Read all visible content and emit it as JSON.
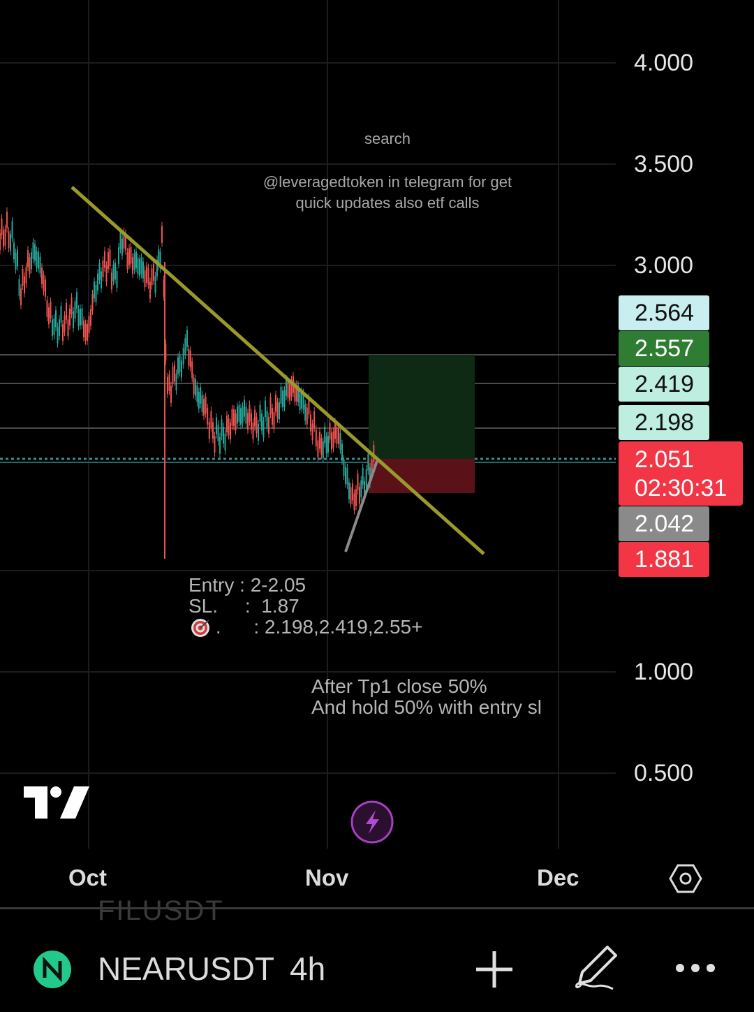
{
  "price_axis": [
    "4.000",
    "3.500",
    "3.000",
    "1.000",
    "0.500"
  ],
  "price_badges": [
    {
      "value": "2.564",
      "bg": "#c8eef0",
      "fg": "#111111"
    },
    {
      "value": "2.557",
      "bg": "#2e7d32",
      "fg": "#ffffff"
    },
    {
      "value": "2.419",
      "bg": "#bdeee0",
      "fg": "#111111"
    },
    {
      "value": "2.198",
      "bg": "#bdeee0",
      "fg": "#111111"
    },
    {
      "value": "2.042",
      "bg": "#8a8a8a",
      "fg": "#ffffff"
    },
    {
      "value": "1.881",
      "bg": "#f23645",
      "fg": "#ffffff"
    }
  ],
  "current_price": {
    "value": "2.051",
    "countdown": "02:30:31",
    "bg": "#f23645"
  },
  "time_axis": [
    "Oct",
    "Nov",
    "Dec"
  ],
  "notes": {
    "search": "search",
    "promo": "@leveragedtoken in telegram for get\nquick updates also etf calls",
    "trade": "Entry : 2-2.05\nSL.     :  1.87\n     .      : 2.198,2.419,2.55+",
    "target_icon": "target-emoji",
    "plan": "After Tp1 close 50%\nAnd hold 50% with entry sl"
  },
  "symbol": {
    "ticker": "NEARUSDT",
    "interval": "4h",
    "ghost": "FILUSDT"
  },
  "toolbar": {
    "add": "plus-icon",
    "draw": "pen-icon",
    "more": "more-icon"
  },
  "colors": {
    "trendline": "#9a9a2a",
    "up": "#26a69a",
    "down": "#ef5350",
    "long_zone": "#0f2a14",
    "short_zone": "#5a1218"
  }
}
